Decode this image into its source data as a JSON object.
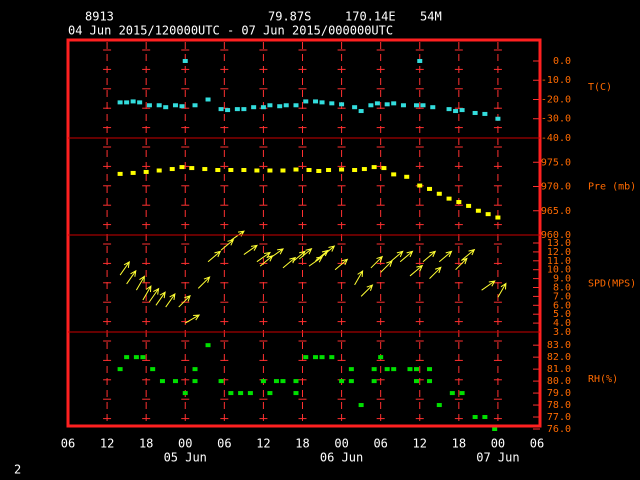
{
  "header": {
    "station": "8913",
    "lat": "79.87S",
    "lon": "170.14E",
    "elev": "54M",
    "period": "04 Jun 2015/120000UTC - 07 Jun 2015/000000UTC"
  },
  "footer": "2",
  "chart_data": [
    {
      "type": "scatter",
      "ylabel": "T(C)",
      "color": "#33dddd",
      "xlim": [
        0,
        72
      ],
      "ylim": [
        -40,
        10.9
      ],
      "yticks": [
        {
          "value": 0,
          "label": "0.0"
        },
        {
          "value": -10,
          "label": "-10.0"
        },
        {
          "value": -20,
          "label": "-20.0"
        },
        {
          "value": -30,
          "label": "-30.0"
        },
        {
          "value": -40,
          "label": "-40.0"
        }
      ],
      "x": [
        8,
        9,
        10,
        11,
        12.5,
        14,
        15,
        16.5,
        17.5,
        18,
        19.5,
        21.5,
        23.5,
        24.5,
        26,
        27,
        28.5,
        30,
        31,
        32.5,
        33.5,
        35,
        36.5,
        38,
        39,
        40.5,
        42,
        44,
        45,
        46.5,
        47.5,
        49,
        50,
        51.5,
        53.5,
        54,
        54.5,
        56,
        58.5,
        59.5,
        60.5,
        62.5,
        64,
        66
      ],
      "values": [
        -21.5,
        -21.5,
        -21,
        -21.5,
        -23,
        -23,
        -24,
        -23,
        -23.5,
        0,
        -23,
        -20,
        -25,
        -25.5,
        -25,
        -25,
        -24,
        -24,
        -23,
        -23.5,
        -23,
        -23,
        -21,
        -21,
        -21.5,
        -22,
        -22.5,
        -24,
        -26,
        -23,
        -22,
        -22.5,
        -22,
        -23,
        -23,
        0,
        -23,
        -24,
        -25,
        -26,
        -25.5,
        -27,
        -27.5,
        -30
      ]
    },
    {
      "type": "scatter",
      "ylabel": "Pre (mb)",
      "color": "#ffff00",
      "xlim": [
        0,
        72
      ],
      "ylim": [
        960,
        980
      ],
      "yticks": [
        {
          "value": 975,
          "label": "975.0"
        },
        {
          "value": 970,
          "label": "970.0"
        },
        {
          "value": 965,
          "label": "965.0"
        },
        {
          "value": 960,
          "label": "960.0"
        }
      ],
      "x": [
        8,
        10,
        12,
        14,
        16,
        17.5,
        19,
        21,
        23,
        25,
        27,
        29,
        31,
        33,
        35,
        37,
        38.5,
        40,
        42,
        44,
        45.5,
        47,
        48.5,
        50,
        52,
        54,
        55.5,
        57,
        58.5,
        60,
        61.5,
        63,
        64.5,
        66
      ],
      "values": [
        972.6,
        972.8,
        973,
        973.3,
        973.6,
        974,
        973.8,
        973.6,
        973.4,
        973.4,
        973.4,
        973.3,
        973.3,
        973.3,
        973.5,
        973.4,
        973.2,
        973.4,
        973.5,
        973.4,
        973.6,
        974,
        973.8,
        972.5,
        972,
        970.2,
        969.5,
        968.5,
        967.5,
        966.8,
        966,
        965,
        964.3,
        963.6
      ]
    },
    {
      "type": "vector",
      "ylabel": "SPD(MPS)",
      "color": "#ffff33",
      "xlim": [
        0,
        72
      ],
      "ylim": [
        3,
        13.9
      ],
      "yticks": [
        {
          "value": 13,
          "label": "13.0"
        },
        {
          "value": 12,
          "label": "12.0"
        },
        {
          "value": 11,
          "label": "11.0"
        },
        {
          "value": 10,
          "label": "10.0"
        },
        {
          "value": 9,
          "label": "9.0"
        },
        {
          "value": 8,
          "label": "8.0"
        },
        {
          "value": 7,
          "label": "7.0"
        },
        {
          "value": 6,
          "label": "6.0"
        },
        {
          "value": 5,
          "label": "5.0"
        },
        {
          "value": 4,
          "label": "4.0"
        },
        {
          "value": 3,
          "label": "3.0"
        }
      ],
      "x": [
        8,
        9,
        10.5,
        11.5,
        12.5,
        13.5,
        15,
        17,
        18,
        20,
        21.5,
        23.5,
        25,
        27,
        29,
        29.5,
        31,
        33,
        34.5,
        35.5,
        37,
        38,
        39,
        41,
        44,
        45,
        46.5,
        48,
        49.5,
        51,
        52.5,
        54.5,
        55.5,
        57,
        59.5,
        60.5,
        63.5,
        66
      ],
      "values": [
        9.4,
        8.4,
        7.7,
        6.6,
        6.4,
        6,
        5.8,
        5.8,
        4,
        7.9,
        10.9,
        12.2,
        13.3,
        11.7,
        10.9,
        10.4,
        11.3,
        10.2,
        10.9,
        11.2,
        10.4,
        11,
        11.5,
        10,
        8.3,
        7,
        10.2,
        9.7,
        10.9,
        10.9,
        9.3,
        10.9,
        9,
        10.9,
        10,
        11.1,
        7.7,
        6.9
      ],
      "angles": [
        55,
        55,
        60,
        60,
        55,
        55,
        55,
        45,
        30,
        45,
        40,
        40,
        35,
        35,
        35,
        40,
        35,
        40,
        40,
        40,
        35,
        40,
        40,
        40,
        60,
        45,
        45,
        45,
        40,
        40,
        40,
        40,
        45,
        40,
        45,
        40,
        35,
        60
      ]
    },
    {
      "type": "scatter",
      "ylabel": "RH(%)",
      "color": "#00e000",
      "xlim": [
        0,
        72
      ],
      "ylim": [
        76.25,
        84.1
      ],
      "yticks": [
        {
          "value": 83,
          "label": "83.0"
        },
        {
          "value": 82,
          "label": "82.0"
        },
        {
          "value": 81,
          "label": "81.0"
        },
        {
          "value": 80,
          "label": "80.0"
        },
        {
          "value": 79,
          "label": "79.0"
        },
        {
          "value": 78,
          "label": "78.0"
        },
        {
          "value": 77,
          "label": "77.0"
        },
        {
          "value": 76,
          "label": "76.0"
        }
      ],
      "xticks": [
        {
          "value": 0,
          "label": "06"
        },
        {
          "value": 6,
          "label": "12"
        },
        {
          "value": 12,
          "label": "18"
        },
        {
          "value": 18,
          "label": "00"
        },
        {
          "value": 24,
          "label": "06"
        },
        {
          "value": 30,
          "label": "12"
        },
        {
          "value": 36,
          "label": "18"
        },
        {
          "value": 42,
          "label": "00"
        },
        {
          "value": 48,
          "label": "06"
        },
        {
          "value": 54,
          "label": "12"
        },
        {
          "value": 60,
          "label": "18"
        },
        {
          "value": 66,
          "label": "00"
        },
        {
          "value": 72,
          "label": "06"
        }
      ],
      "date_labels": [
        {
          "value": 18,
          "label": "05 Jun"
        },
        {
          "value": 42,
          "label": "06 Jun"
        },
        {
          "value": 66,
          "label": "07 Jun"
        }
      ],
      "x": [
        8,
        9,
        10.5,
        11.5,
        13,
        14.5,
        16.5,
        18,
        19.5,
        19.5,
        21.5,
        23.5,
        25,
        26.5,
        28,
        30,
        31,
        32,
        33,
        35,
        35,
        36.5,
        38,
        39,
        40.5,
        42,
        43.5,
        43.5,
        45,
        47,
        47,
        48,
        49,
        50,
        52.5,
        53.5,
        53.5,
        55.5,
        55.5,
        57,
        59,
        60.5,
        62.5,
        64,
        65.5
      ],
      "values": [
        81,
        82,
        82,
        82,
        81,
        80,
        80,
        79,
        81,
        80,
        83,
        80,
        79,
        79,
        79,
        80,
        79,
        80,
        80,
        80,
        79,
        82,
        82,
        82,
        82,
        80,
        81,
        80,
        78,
        81,
        80,
        82,
        81,
        81,
        81,
        81,
        80,
        81,
        80,
        78,
        79,
        79,
        77,
        77,
        76
      ]
    }
  ]
}
